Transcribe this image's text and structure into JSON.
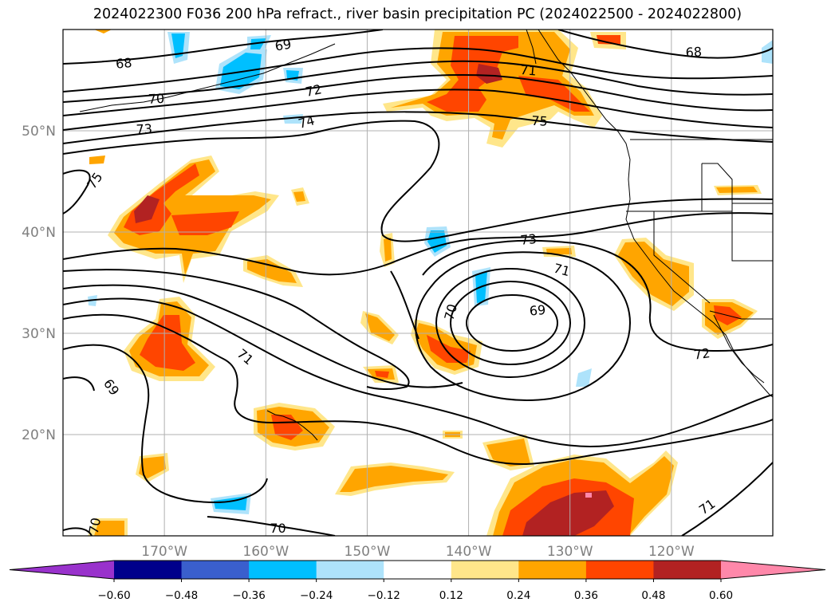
{
  "title": "2024022300 F036 200 hPa refract., river basin precipitation PC (2024022500 - 2024022800)",
  "map": {
    "extent": {
      "lon_min": -180,
      "lon_max": -110,
      "lat_min": 10,
      "lat_max": 60
    },
    "lon_ticks": [
      {
        "lon": -170,
        "label": "170°W"
      },
      {
        "lon": -160,
        "label": "160°W"
      },
      {
        "lon": -150,
        "label": "150°W"
      },
      {
        "lon": -140,
        "label": "140°W"
      },
      {
        "lon": -130,
        "label": "130°W"
      },
      {
        "lon": -120,
        "label": "120°W"
      }
    ],
    "lat_ticks": [
      {
        "lat": 50,
        "label": "50°N"
      },
      {
        "lat": 40,
        "label": "40°N"
      },
      {
        "lat": 30,
        "label": "30°N"
      },
      {
        "lat": 20,
        "label": "20°N"
      }
    ],
    "gridlines": true,
    "contour_labels": [
      {
        "text": "68",
        "lon": -174,
        "lat": 56.7,
        "rot": -5
      },
      {
        "text": "68",
        "lon": -117.8,
        "lat": 57.8,
        "rot": -3
      },
      {
        "text": "69",
        "lon": -158.3,
        "lat": 58.5,
        "rot": -10
      },
      {
        "text": "70",
        "lon": -170.8,
        "lat": 53.2,
        "rot": -3
      },
      {
        "text": "71",
        "lon": -134.1,
        "lat": 56.0,
        "rot": 5
      },
      {
        "text": "72",
        "lon": -155.3,
        "lat": 54.0,
        "rot": -12
      },
      {
        "text": "73",
        "lon": -172.0,
        "lat": 50.2,
        "rot": -3
      },
      {
        "text": "74",
        "lon": -156.0,
        "lat": 50.9,
        "rot": -15
      },
      {
        "text": "75",
        "lon": -133.0,
        "lat": 51.0,
        "rot": 3
      },
      {
        "text": "75",
        "lon": -176.9,
        "lat": 45.1,
        "rot": -55
      },
      {
        "text": "73",
        "lon": -134.1,
        "lat": 39.3,
        "rot": -6
      },
      {
        "text": "71",
        "lon": -130.8,
        "lat": 36.3,
        "rot": 15
      },
      {
        "text": "69",
        "lon": -133.2,
        "lat": 32.3,
        "rot": -5
      },
      {
        "text": "70",
        "lon": -141.8,
        "lat": 32.1,
        "rot": -75
      },
      {
        "text": "71",
        "lon": -162.0,
        "lat": 27.7,
        "rot": 40
      },
      {
        "text": "69",
        "lon": -175.2,
        "lat": 24.7,
        "rot": 55
      },
      {
        "text": "72",
        "lon": -117.0,
        "lat": 28.0,
        "rot": -8
      },
      {
        "text": "71",
        "lon": -116.5,
        "lat": 12.9,
        "rot": -35
      },
      {
        "text": "70",
        "lon": -158.8,
        "lat": 10.8,
        "rot": 0
      },
      {
        "text": "70",
        "lon": -176.9,
        "lat": 11.0,
        "rot": -80
      }
    ]
  },
  "colorbar": {
    "ticks": [
      "−0.60",
      "−0.48",
      "−0.36",
      "−0.24",
      "−0.12",
      "0.12",
      "0.24",
      "0.36",
      "0.48",
      "0.60"
    ],
    "under_color": "#9932cc",
    "over_color": "#ff88aa",
    "colors": [
      "#00008b",
      "#3a5fcd",
      "#00bfff",
      "#aee3fb",
      "#ffffff",
      "#ffe68a",
      "#ffa500",
      "#ff4500",
      "#b22222"
    ]
  }
}
